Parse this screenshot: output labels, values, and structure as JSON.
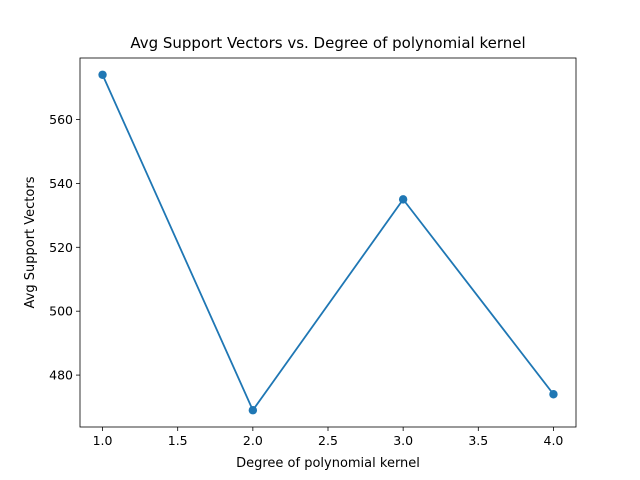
{
  "chart_data": {
    "type": "line",
    "title": "Avg Support Vectors vs. Degree of polynomial kernel",
    "xlabel": "Degree of polynomial kernel",
    "ylabel": "Avg Support Vectors",
    "x": [
      1.0,
      2.0,
      3.0,
      4.0
    ],
    "series": [
      {
        "values": [
          574,
          469,
          535,
          474
        ]
      }
    ],
    "xlim": [
      0.85,
      4.15
    ],
    "ylim": [
      463.75,
      579.25
    ],
    "xticks": [
      "1.0",
      "1.5",
      "2.0",
      "2.5",
      "3.0",
      "3.5",
      "4.0"
    ],
    "yticks": [
      "480",
      "500",
      "520",
      "540",
      "560"
    ],
    "markers": true,
    "grid": false,
    "line_color": "#1f77b4"
  }
}
